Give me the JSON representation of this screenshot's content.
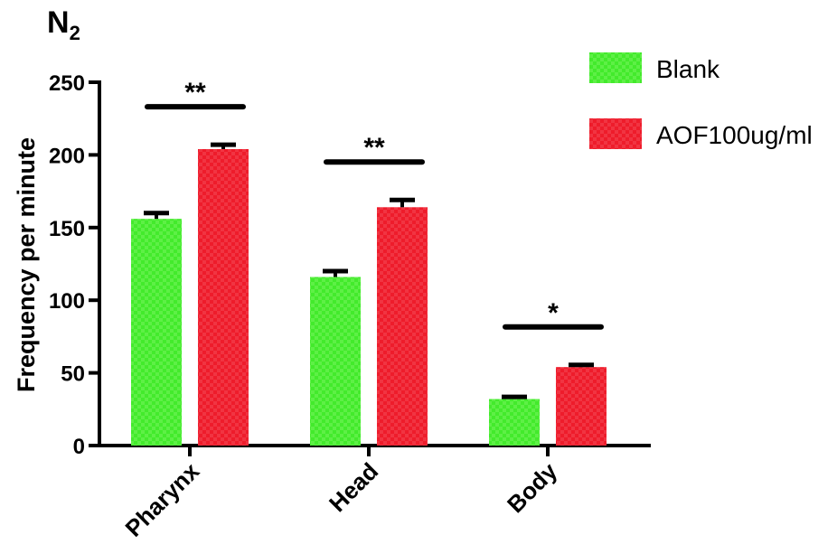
{
  "chart_data": {
    "type": "bar",
    "title": "N",
    "title_subscript": "2",
    "ylabel": "Frequency per minute",
    "xlabel": "",
    "ylim": [
      0,
      250
    ],
    "yticks": [
      "0",
      "50",
      "100",
      "150",
      "200",
      "250"
    ],
    "categories": [
      "Pharynx",
      "Head",
      "Body"
    ],
    "series": [
      {
        "name": "Blank",
        "color": "#43ea2c",
        "values": [
          156,
          116,
          32
        ],
        "errors": [
          4,
          4,
          1.5
        ]
      },
      {
        "name": "AOF100ug/ml",
        "color": "#ee1c2b",
        "values": [
          204,
          164,
          54
        ],
        "errors": [
          3,
          5,
          1.5
        ]
      }
    ],
    "significance": [
      "**",
      "**",
      "*"
    ],
    "legend_position": "top-right",
    "grid": false
  }
}
